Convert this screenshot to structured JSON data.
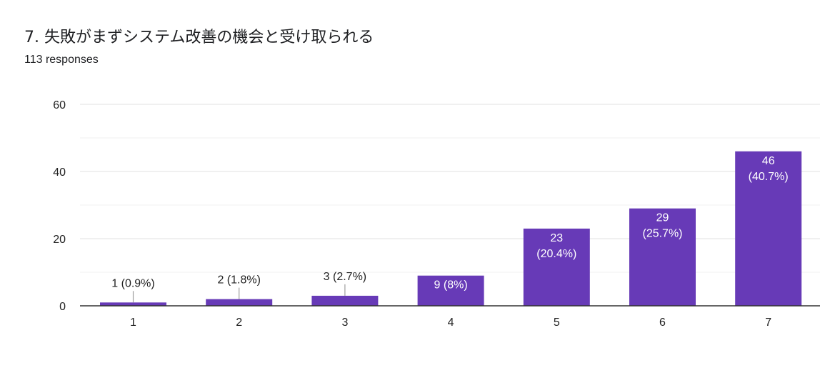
{
  "header": {
    "title": "7. 失敗がまずシステム改善の機会と受け取られる",
    "subtitle": "113 responses"
  },
  "chart_data": {
    "type": "bar",
    "categories": [
      "1",
      "2",
      "3",
      "4",
      "5",
      "6",
      "7"
    ],
    "values": [
      1,
      2,
      3,
      9,
      23,
      29,
      46
    ],
    "data_labels": [
      "1 (0.9%)",
      "2 (1.8%)",
      "3 (2.7%)",
      "9 (8%)",
      "23\n(20.4%)",
      "29\n(25.7%)",
      "46\n(40.7%)"
    ],
    "y_ticks": [
      0,
      20,
      40,
      60
    ],
    "ylim": [
      0,
      60
    ],
    "grid": true,
    "bar_color": "#673ab7"
  }
}
